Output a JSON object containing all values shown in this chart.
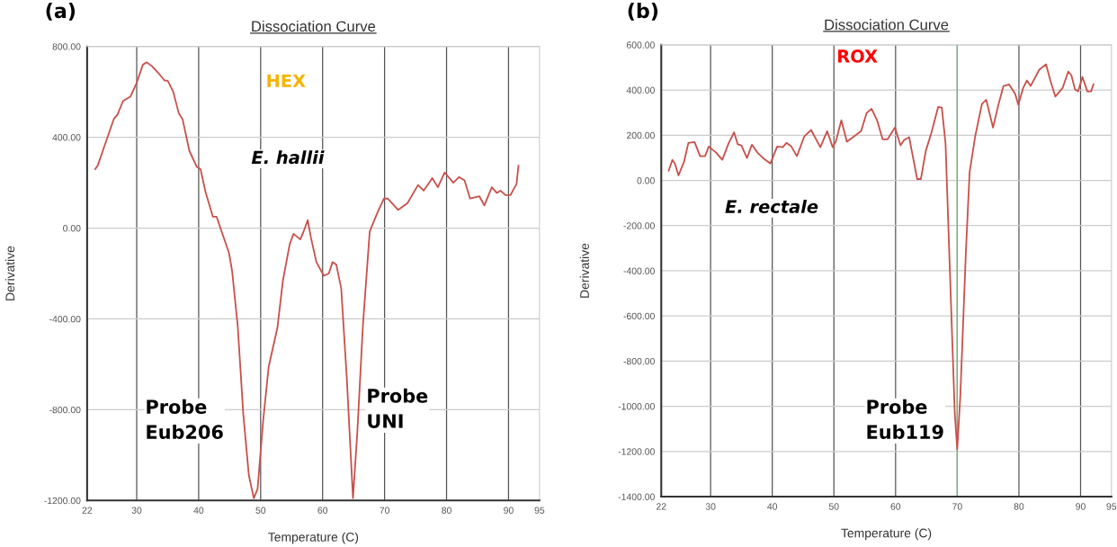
{
  "chart_data": [
    {
      "type": "line",
      "title": "Dissociation Curve",
      "xlabel": "Temperature (C)",
      "ylabel": "Derivative",
      "annotations": [
        "(a)",
        "HEX",
        "E. hallii",
        "Probe\nEub206",
        "Probe\nUNI"
      ],
      "xlim": [
        22,
        95
      ],
      "xticks": [
        22,
        30,
        40,
        50,
        60,
        70,
        80,
        90,
        95
      ],
      "ylim": [
        -1200,
        800
      ],
      "yticks": [
        {
          "value": -1200,
          "label": "-1200.00"
        },
        {
          "value": -800,
          "label": "-800.00"
        },
        {
          "value": -400,
          "label": "-400.00"
        },
        {
          "value": 0,
          "label": "0.00"
        },
        {
          "value": 400,
          "label": "400.00"
        },
        {
          "value": 800,
          "label": "800.00"
        }
      ],
      "grid": true,
      "legend": false,
      "marker": "none",
      "line_style": "solid",
      "series": [
        {
          "color": "#c8504a",
          "x": [
            23.3,
            23.7,
            24.9,
            26.3,
            26.9,
            27.8,
            29.0,
            30.0,
            31.0,
            31.6,
            32.4,
            33.6,
            34.5,
            35.0,
            35.9,
            36.8,
            37.4,
            38.5,
            39.7,
            40.3,
            41.1,
            42.3,
            42.9,
            43.7,
            44.9,
            45.4,
            46.3,
            47.2,
            48.1,
            48.9,
            49.5,
            50.4,
            51.3,
            52.7,
            53.6,
            54.7,
            55.3,
            56.4,
            57.0,
            57.6,
            58.1,
            59.0,
            60.2,
            61.0,
            61.6,
            62.2,
            63.0,
            63.9,
            64.9,
            65.6,
            66.5,
            67.6,
            68.8,
            69.9,
            70.5,
            72.2,
            73.7,
            75.4,
            76.3,
            77.7,
            78.6,
            79.7,
            81.1,
            82.0,
            82.9,
            83.8,
            85.3,
            86.1,
            87.3,
            88.1,
            88.7,
            89.5,
            90.3,
            91.3,
            91.6
          ],
          "values": [
            260,
            275,
            370,
            480,
            500,
            560,
            580,
            640,
            720,
            730,
            715,
            680,
            650,
            650,
            600,
            505,
            480,
            340,
            270,
            260,
            160,
            50,
            50,
            -15,
            -110,
            -190,
            -430,
            -820,
            -1090,
            -1190,
            -1150,
            -850,
            -610,
            -440,
            -230,
            -70,
            -25,
            -50,
            -10,
            35,
            -40,
            -150,
            -210,
            -200,
            -150,
            -160,
            -265,
            -660,
            -1190,
            -900,
            -430,
            -15,
            65,
            130,
            130,
            80,
            110,
            190,
            165,
            220,
            180,
            245,
            200,
            225,
            210,
            130,
            140,
            100,
            180,
            155,
            165,
            145,
            145,
            195,
            275
          ]
        }
      ]
    },
    {
      "type": "line",
      "title": "Dissociation Curve",
      "xlabel": "Temperature (C)",
      "ylabel": "Derivative",
      "annotations": [
        "(b)",
        "ROX",
        "E. rectale",
        "Probe\nEub119"
      ],
      "xlim": [
        22,
        95
      ],
      "xticks": [
        22,
        30,
        40,
        50,
        60,
        70,
        80,
        90,
        95
      ],
      "ylim": [
        -1400,
        600
      ],
      "yticks": [
        {
          "value": -1400,
          "label": "-1400.00"
        },
        {
          "value": -1200,
          "label": "-1200.00"
        },
        {
          "value": -1000,
          "label": "-1000.00"
        },
        {
          "value": -800,
          "label": "-800.00"
        },
        {
          "value": -600,
          "label": "-600.00"
        },
        {
          "value": -400,
          "label": "-400.00"
        },
        {
          "value": -200,
          "label": "-200.00"
        },
        {
          "value": 0,
          "label": "0.00"
        },
        {
          "value": 200,
          "label": "200.00"
        },
        {
          "value": 400,
          "label": "400.00"
        },
        {
          "value": 600,
          "label": "600.00"
        }
      ],
      "grid": true,
      "legend": false,
      "marker": "none",
      "line_style": "solid",
      "ref_lines": [
        {
          "axis": "x",
          "value": 70,
          "color": "#66bb66"
        }
      ],
      "series": [
        {
          "color": "#c8504a",
          "x": [
            23.2,
            23.8,
            24.2,
            24.8,
            25.7,
            26.4,
            27.4,
            28.3,
            29.1,
            29.7,
            30.9,
            31.9,
            32.9,
            33.8,
            34.4,
            35.0,
            35.9,
            36.7,
            37.6,
            38.5,
            39.7,
            40.8,
            41.7,
            42.3,
            43.1,
            44.0,
            45.2,
            46.3,
            47.8,
            48.9,
            49.8,
            50.3,
            51.2,
            52.1,
            52.9,
            54.4,
            55.3,
            56.1,
            57.0,
            57.9,
            58.7,
            59.9,
            60.8,
            61.4,
            62.2,
            63.5,
            64.1,
            64.9,
            65.8,
            66.9,
            67.5,
            68.1,
            68.7,
            69.6,
            70.0,
            70.5,
            71.4,
            72.0,
            72.9,
            74.0,
            74.7,
            75.8,
            76.7,
            77.5,
            78.4,
            79.4,
            79.9,
            80.7,
            81.3,
            81.9,
            83.3,
            84.4,
            85.1,
            85.9,
            87.1,
            88.0,
            88.5,
            89.1,
            89.6,
            90.3,
            91.1,
            91.7,
            92.1
          ],
          "values": [
            43,
            91,
            75,
            22,
            83,
            166,
            170,
            107,
            107,
            150,
            123,
            91,
            163,
            213,
            160,
            155,
            99,
            158,
            123,
            99,
            75,
            150,
            147,
            166,
            150,
            107,
            195,
            223,
            147,
            218,
            147,
            171,
            266,
            171,
            187,
            218,
            298,
            317,
            266,
            182,
            182,
            234,
            155,
            179,
            191,
            6,
            6,
            131,
            210,
            325,
            322,
            163,
            -316,
            -1033,
            -1190,
            -953,
            -316,
            35,
            194,
            338,
            357,
            234,
            338,
            418,
            425,
            382,
            335,
            410,
            442,
            418,
            490,
            514,
            442,
            371,
            410,
            482,
            466,
            402,
            394,
            458,
            394,
            394,
            426
          ]
        }
      ]
    }
  ]
}
